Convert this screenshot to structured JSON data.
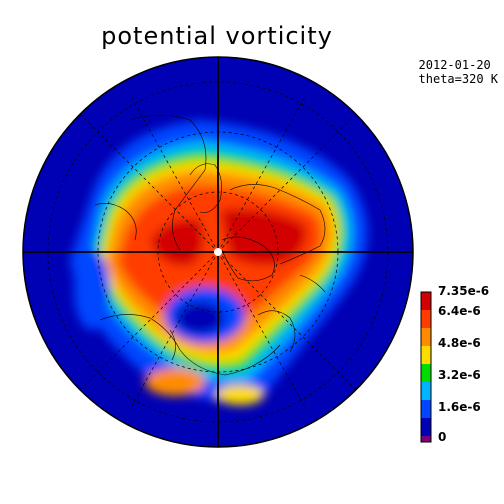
{
  "title": "potential vorticity",
  "date": "2012-01-20",
  "level": "theta=320 K",
  "colorbar": {
    "tick_labels": [
      "7.35e-6",
      "6.4e-6",
      "4.8e-6",
      "3.2e-6",
      "1.6e-6",
      "0"
    ],
    "colors": [
      "#7a007a",
      "#0000b4",
      "#0046ff",
      "#00b4ff",
      "#00dc00",
      "#ffdc00",
      "#ff8c00",
      "#ff3c00",
      "#d20000"
    ]
  }
}
